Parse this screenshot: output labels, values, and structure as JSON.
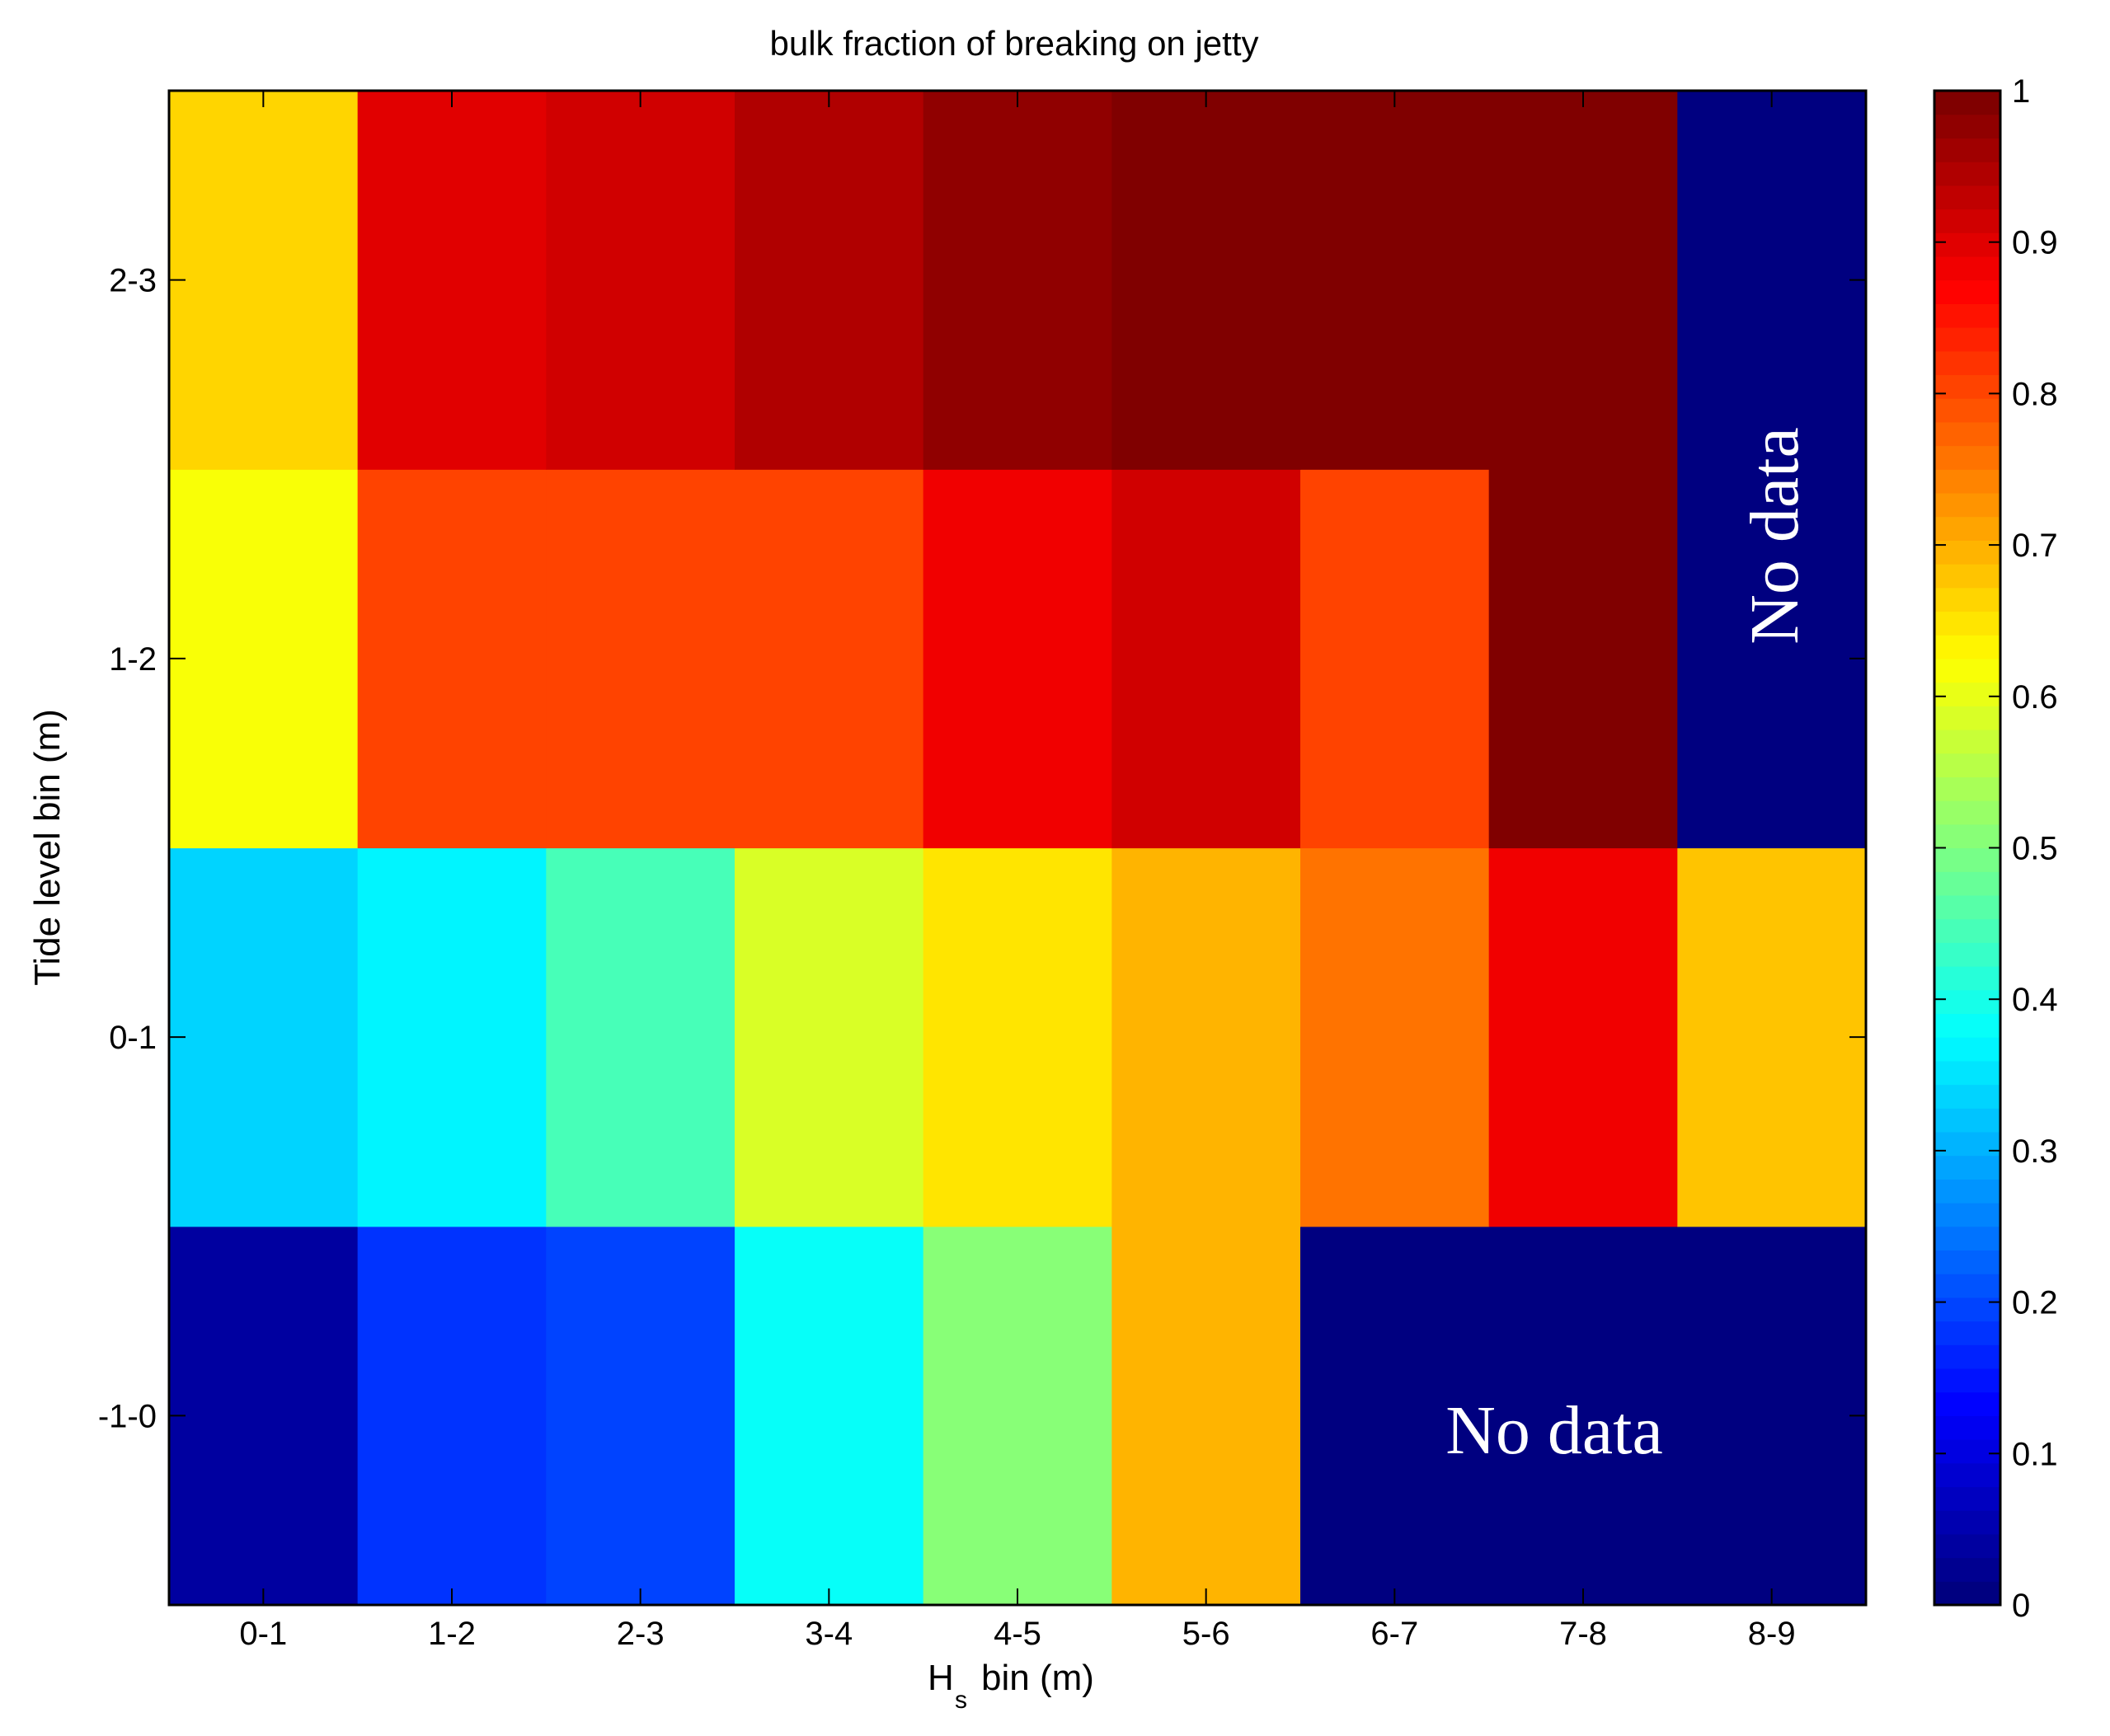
{
  "chart_data": {
    "type": "heatmap",
    "title": "bulk fraction of breaking on jetty",
    "xlabel": "bin (m)",
    "xlabel_main": "H",
    "xlabel_sub": "s",
    "ylabel": "Tide level bin (m)",
    "x_categories": [
      "0-1",
      "1-2",
      "2-3",
      "3-4",
      "4-5",
      "5-6",
      "6-7",
      "7-8",
      "8-9"
    ],
    "y_categories": [
      "-1-0",
      "0-1",
      "1-2",
      "2-3"
    ],
    "values": [
      [
        0.04,
        0.18,
        0.2,
        0.39,
        0.51,
        0.7,
        null,
        null,
        null
      ],
      [
        0.33,
        0.37,
        0.44,
        0.58,
        0.65,
        0.7,
        0.75,
        0.89,
        0.68
      ],
      [
        0.62,
        0.8,
        0.8,
        0.8,
        0.88,
        0.91,
        0.8,
        1.0,
        null
      ],
      [
        0.66,
        0.9,
        0.92,
        0.94,
        0.98,
        1.0,
        1.0,
        1.0,
        null
      ]
    ],
    "no_data_color": "#000080",
    "colormap": "jet",
    "clim": [
      0,
      1
    ],
    "colorbar_ticks": [
      "0",
      "0.1",
      "0.2",
      "0.3",
      "0.4",
      "0.5",
      "0.6",
      "0.7",
      "0.8",
      "0.9",
      "1"
    ],
    "annotations": [
      {
        "text": "No data",
        "region": "bottom-right (Tide -1-0, Hs 6-9)",
        "orientation": "horizontal"
      },
      {
        "text": "No data",
        "region": "right column (Tide 1-3, Hs 8-9)",
        "orientation": "vertical"
      }
    ]
  }
}
